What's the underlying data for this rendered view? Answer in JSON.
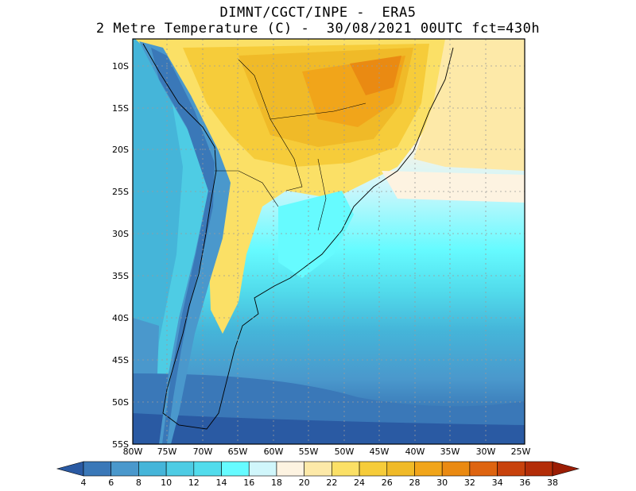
{
  "title": {
    "line1": "DIMNT/CGCT/INPE -  ERA5",
    "line2": "2 Metre Temperature (C) -  30/08/2021 00UTC fct=430h"
  },
  "axes": {
    "lat_labels": [
      "10S",
      "15S",
      "20S",
      "25S",
      "30S",
      "35S",
      "40S",
      "45S",
      "50S",
      "55S"
    ],
    "lon_labels": [
      "80W",
      "75W",
      "70W",
      "65W",
      "60W",
      "55W",
      "50W",
      "45W",
      "40W",
      "35W",
      "30W",
      "25W"
    ],
    "lat_range": [
      -55,
      -7.5
    ],
    "lon_range": [
      -80,
      -25
    ]
  },
  "colorbar": {
    "labels": [
      "4",
      "6",
      "8",
      "10",
      "12",
      "14",
      "16",
      "18",
      "20",
      "22",
      "24",
      "26",
      "28",
      "30",
      "32",
      "34",
      "36",
      "38"
    ],
    "colors": [
      "#2a5aa3",
      "#3a78b8",
      "#4a98cc",
      "#45b5d9",
      "#4ecce4",
      "#52dcec",
      "#66fbff",
      "#d0f6fb",
      "#fdf3e1",
      "#fde9a8",
      "#fbe066",
      "#f6cc3a",
      "#f0ba28",
      "#f1a51a",
      "#ea8a12",
      "#de6410",
      "#c8420c",
      "#b32d08",
      "#9b1d04"
    ]
  }
}
